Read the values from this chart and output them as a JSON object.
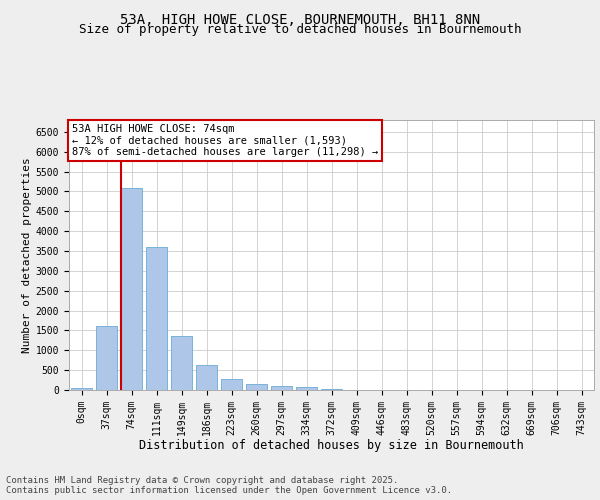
{
  "title_line1": "53A, HIGH HOWE CLOSE, BOURNEMOUTH, BH11 8NN",
  "title_line2": "Size of property relative to detached houses in Bournemouth",
  "xlabel": "Distribution of detached houses by size in Bournemouth",
  "ylabel": "Number of detached properties",
  "categories": [
    "0sqm",
    "37sqm",
    "74sqm",
    "111sqm",
    "149sqm",
    "186sqm",
    "223sqm",
    "260sqm",
    "297sqm",
    "334sqm",
    "372sqm",
    "409sqm",
    "446sqm",
    "483sqm",
    "520sqm",
    "557sqm",
    "594sqm",
    "632sqm",
    "669sqm",
    "706sqm",
    "743sqm"
  ],
  "values": [
    50,
    1600,
    5100,
    3600,
    1350,
    620,
    280,
    155,
    100,
    70,
    30,
    10,
    5,
    2,
    1,
    0,
    0,
    0,
    0,
    0,
    0
  ],
  "bar_color": "#aec6e8",
  "bar_edge_color": "#6aaad4",
  "vline_index": 2,
  "vline_color": "#cc0000",
  "annotation_box_text": "53A HIGH HOWE CLOSE: 74sqm\n← 12% of detached houses are smaller (1,593)\n87% of semi-detached houses are larger (11,298) →",
  "annotation_fontsize": 7.5,
  "annotation_box_color": "#cc0000",
  "ylim": [
    0,
    6800
  ],
  "yticks": [
    0,
    500,
    1000,
    1500,
    2000,
    2500,
    3000,
    3500,
    4000,
    4500,
    5000,
    5500,
    6000,
    6500
  ],
  "background_color": "#eeeeee",
  "plot_bg_color": "#ffffff",
  "footer_line1": "Contains HM Land Registry data © Crown copyright and database right 2025.",
  "footer_line2": "Contains public sector information licensed under the Open Government Licence v3.0.",
  "title_fontsize": 10,
  "subtitle_fontsize": 9,
  "xlabel_fontsize": 8.5,
  "ylabel_fontsize": 8,
  "tick_fontsize": 7,
  "footer_fontsize": 6.5
}
